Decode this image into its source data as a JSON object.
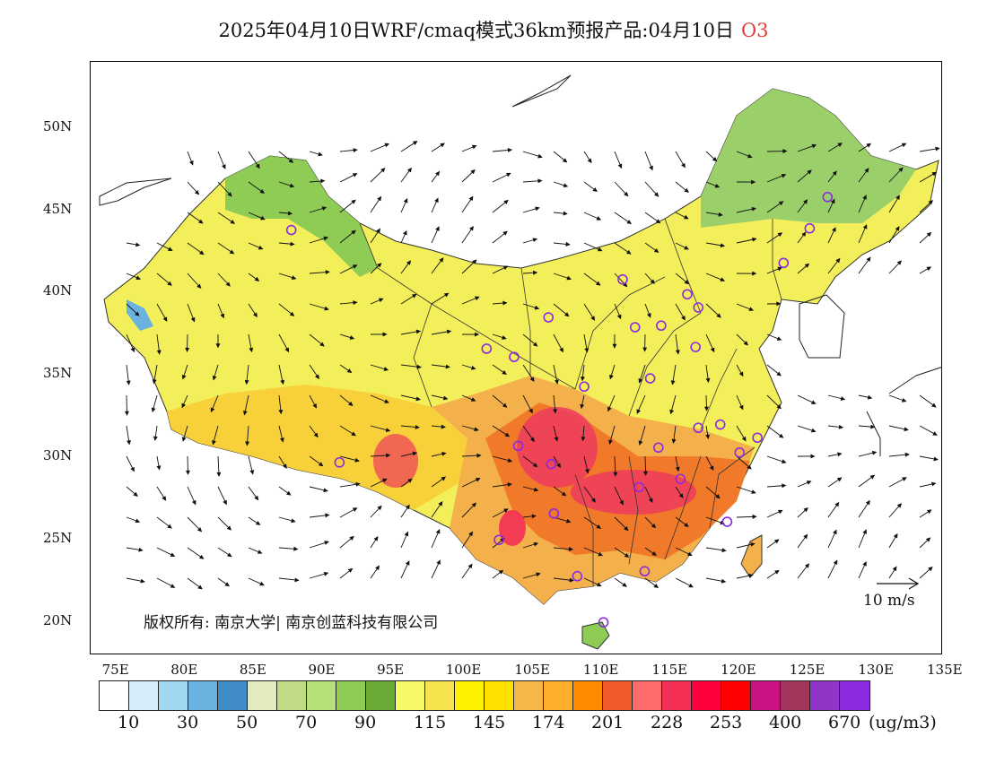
{
  "title": {
    "text": "2025年04月10日WRF/cmaq模式36km预报产品:04月10日",
    "pollutant": "O3"
  },
  "map": {
    "lat_labels": [
      "50N",
      "45N",
      "40N",
      "35N",
      "30N",
      "25N",
      "20N"
    ],
    "lon_labels": [
      "75E",
      "80E",
      "85E",
      "90E",
      "95E",
      "100E",
      "105E",
      "110E",
      "115E",
      "120E",
      "125E",
      "130E",
      "135E"
    ],
    "extent": {
      "lon_min": 73,
      "lon_max": 135,
      "lat_min": 18,
      "lat_max": 54
    },
    "copyright": "版权所有: 南京大学| 南京创蓝科技有限公司",
    "wind_reference": "10 m/s",
    "region_colors": {
      "north_belt": "#9bcf6a",
      "northwest": "#f3ef5a",
      "tibet": "#f3ef5a",
      "central": "#f4b04a",
      "south_central": "#f07a2a",
      "hotspot": "#ef3b5d",
      "coast": "#f9e63a"
    }
  },
  "legend": {
    "colors": [
      "#ffffff",
      "#d6eef9",
      "#a0d8f2",
      "#6ab3e0",
      "#3f8cc8",
      "#e3ecbe",
      "#bfdb84",
      "#b8e07a",
      "#8fcc55",
      "#6aaa36",
      "#f5fa66",
      "#f6e34e",
      "#fff200",
      "#ffe100",
      "#f7b648",
      "#ffad2a",
      "#ff8a00",
      "#f05b2b",
      "#ff6b6b",
      "#f53056",
      "#ff003c",
      "#ff0000",
      "#c91382",
      "#a3345c",
      "#9334c9",
      "#8a2be2"
    ],
    "tick_labels": [
      "10",
      "30",
      "50",
      "70",
      "90",
      "115",
      "145",
      "174",
      "201",
      "228",
      "253",
      "400",
      "670"
    ],
    "unit": "(ug/m3)"
  },
  "cities": [
    {
      "lon": 87.6,
      "lat": 43.8
    },
    {
      "lon": 91.1,
      "lat": 29.7
    },
    {
      "lon": 101.8,
      "lat": 36.6
    },
    {
      "lon": 103.8,
      "lat": 36.1
    },
    {
      "lon": 106.3,
      "lat": 38.5
    },
    {
      "lon": 104.1,
      "lat": 30.7
    },
    {
      "lon": 106.5,
      "lat": 29.6
    },
    {
      "lon": 108.9,
      "lat": 34.3
    },
    {
      "lon": 106.7,
      "lat": 26.6
    },
    {
      "lon": 102.7,
      "lat": 25.0
    },
    {
      "lon": 108.4,
      "lat": 22.8
    },
    {
      "lon": 110.3,
      "lat": 20.0
    },
    {
      "lon": 113.3,
      "lat": 23.1
    },
    {
      "lon": 112.9,
      "lat": 28.2
    },
    {
      "lon": 114.3,
      "lat": 30.6
    },
    {
      "lon": 115.9,
      "lat": 28.7
    },
    {
      "lon": 119.3,
      "lat": 26.1
    },
    {
      "lon": 120.2,
      "lat": 30.3
    },
    {
      "lon": 121.5,
      "lat": 31.2
    },
    {
      "lon": 118.8,
      "lat": 32.0
    },
    {
      "lon": 117.2,
      "lat": 31.8
    },
    {
      "lon": 113.7,
      "lat": 34.8
    },
    {
      "lon": 117.0,
      "lat": 36.7
    },
    {
      "lon": 112.6,
      "lat": 37.9
    },
    {
      "lon": 114.5,
      "lat": 38.0
    },
    {
      "lon": 116.4,
      "lat": 39.9
    },
    {
      "lon": 117.2,
      "lat": 39.1
    },
    {
      "lon": 111.7,
      "lat": 40.8
    },
    {
      "lon": 123.4,
      "lat": 41.8
    },
    {
      "lon": 125.3,
      "lat": 43.9
    },
    {
      "lon": 126.6,
      "lat": 45.8
    }
  ]
}
